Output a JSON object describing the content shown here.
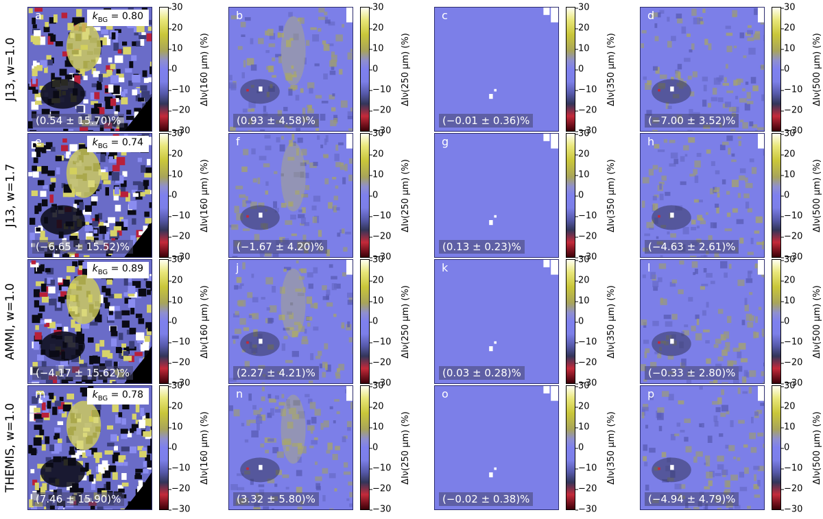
{
  "figure": {
    "row_labels": [
      "J13, w=1.0",
      "J13, w=1.7",
      "AMMI, w=1.0",
      "THEMIS, w=1.0"
    ],
    "colorbar_ticks": [
      "30",
      "20",
      "10",
      "0",
      "−10",
      "−20",
      "−30"
    ],
    "colorbar_labels": [
      "ΔIν(160 μm) (%)",
      "ΔIν(250 μm) (%)",
      "ΔIν(350 μm) (%)",
      "ΔIν(500 μm) (%)"
    ],
    "colors": {
      "low": "#3a0008",
      "mid": "#7c7fe8",
      "high": "#fffff2",
      "frame": "#2b2b6e"
    },
    "panels": [
      [
        {
          "letter": "a",
          "k": "k_BG = 0.80",
          "stat": "(0.54 ± 15.70)%"
        },
        {
          "letter": "b",
          "k": "",
          "stat": "(0.93 ± 4.58)%"
        },
        {
          "letter": "c",
          "k": "",
          "stat": "(−0.01 ± 0.36)%"
        },
        {
          "letter": "d",
          "k": "",
          "stat": "(−7.00 ± 3.52)%"
        }
      ],
      [
        {
          "letter": "e",
          "k": "k_BG = 0.74",
          "stat": "(−6.65 ± 15.52)%"
        },
        {
          "letter": "f",
          "k": "",
          "stat": "(−1.67 ± 4.20)%"
        },
        {
          "letter": "g",
          "k": "",
          "stat": "(0.13 ± 0.23)%"
        },
        {
          "letter": "h",
          "k": "",
          "stat": "(−4.63 ± 2.61)%"
        }
      ],
      [
        {
          "letter": "i",
          "k": "k_BG = 0.89",
          "stat": "(−4.17 ± 15.62)%"
        },
        {
          "letter": "j",
          "k": "",
          "stat": "(2.27 ± 4.21)%"
        },
        {
          "letter": "k",
          "k": "",
          "stat": "(0.03 ± 0.28)%"
        },
        {
          "letter": "l",
          "k": "",
          "stat": "(−0.33 ± 2.80)%"
        }
      ],
      [
        {
          "letter": "m",
          "k": "k_BG = 0.78",
          "stat": "(7.46 ± 15.90)%"
        },
        {
          "letter": "n",
          "k": "",
          "stat": "(3.32 ± 5.80)%"
        },
        {
          "letter": "o",
          "k": "",
          "stat": "(−0.02 ± 0.38)%"
        },
        {
          "letter": "p",
          "k": "",
          "stat": "(−4.94 ± 4.79)%"
        }
      ]
    ]
  }
}
